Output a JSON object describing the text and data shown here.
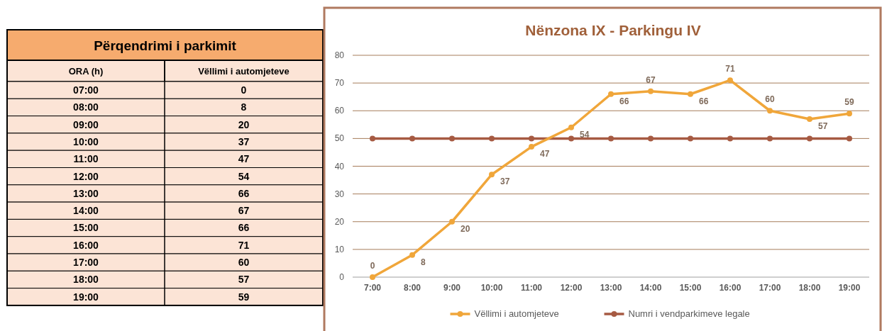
{
  "chart_data": {
    "type": "line",
    "title": "Nënzona IX - Parkingu IV",
    "categories": [
      "7:00",
      "8:00",
      "9:00",
      "10:00",
      "11:00",
      "12:00",
      "13:00",
      "14:00",
      "15:00",
      "16:00",
      "17:00",
      "18:00",
      "19:00"
    ],
    "series": [
      {
        "name": "Vëllimi i automjeteve",
        "color": "#f0a63a",
        "values": [
          0,
          8,
          20,
          37,
          47,
          54,
          66,
          67,
          66,
          71,
          60,
          57,
          59
        ],
        "value_labels": [
          "0",
          "8",
          "20",
          "37",
          "47",
          "54",
          "66",
          "67",
          "66",
          "71",
          "60",
          "57",
          "59"
        ]
      },
      {
        "name": "Numri i vendparkimeve legale",
        "color": "#a65a42",
        "values": [
          50,
          50,
          50,
          50,
          50,
          50,
          50,
          50,
          50,
          50,
          50,
          50,
          50
        ]
      }
    ],
    "ylim": [
      0,
      80
    ],
    "yticks": [
      0,
      10,
      20,
      30,
      40,
      50,
      60,
      70,
      80
    ],
    "grid": "y",
    "legend": "bottom",
    "marker": "circle",
    "line_style": "solid",
    "annotations": [
      "Përqendrimi i parkimit",
      "ORA (h)",
      "Vëllimi i automjeteve",
      "07:00",
      "08:00",
      "09:00",
      "10:00",
      "11:00",
      "12:00",
      "13:00",
      "14:00",
      "15:00",
      "16:00",
      "17:00",
      "18:00",
      "19:00",
      "0",
      "8",
      "20",
      "37",
      "47",
      "54",
      "66",
      "67",
      "66",
      "71",
      "60",
      "57",
      "59"
    ]
  }
}
